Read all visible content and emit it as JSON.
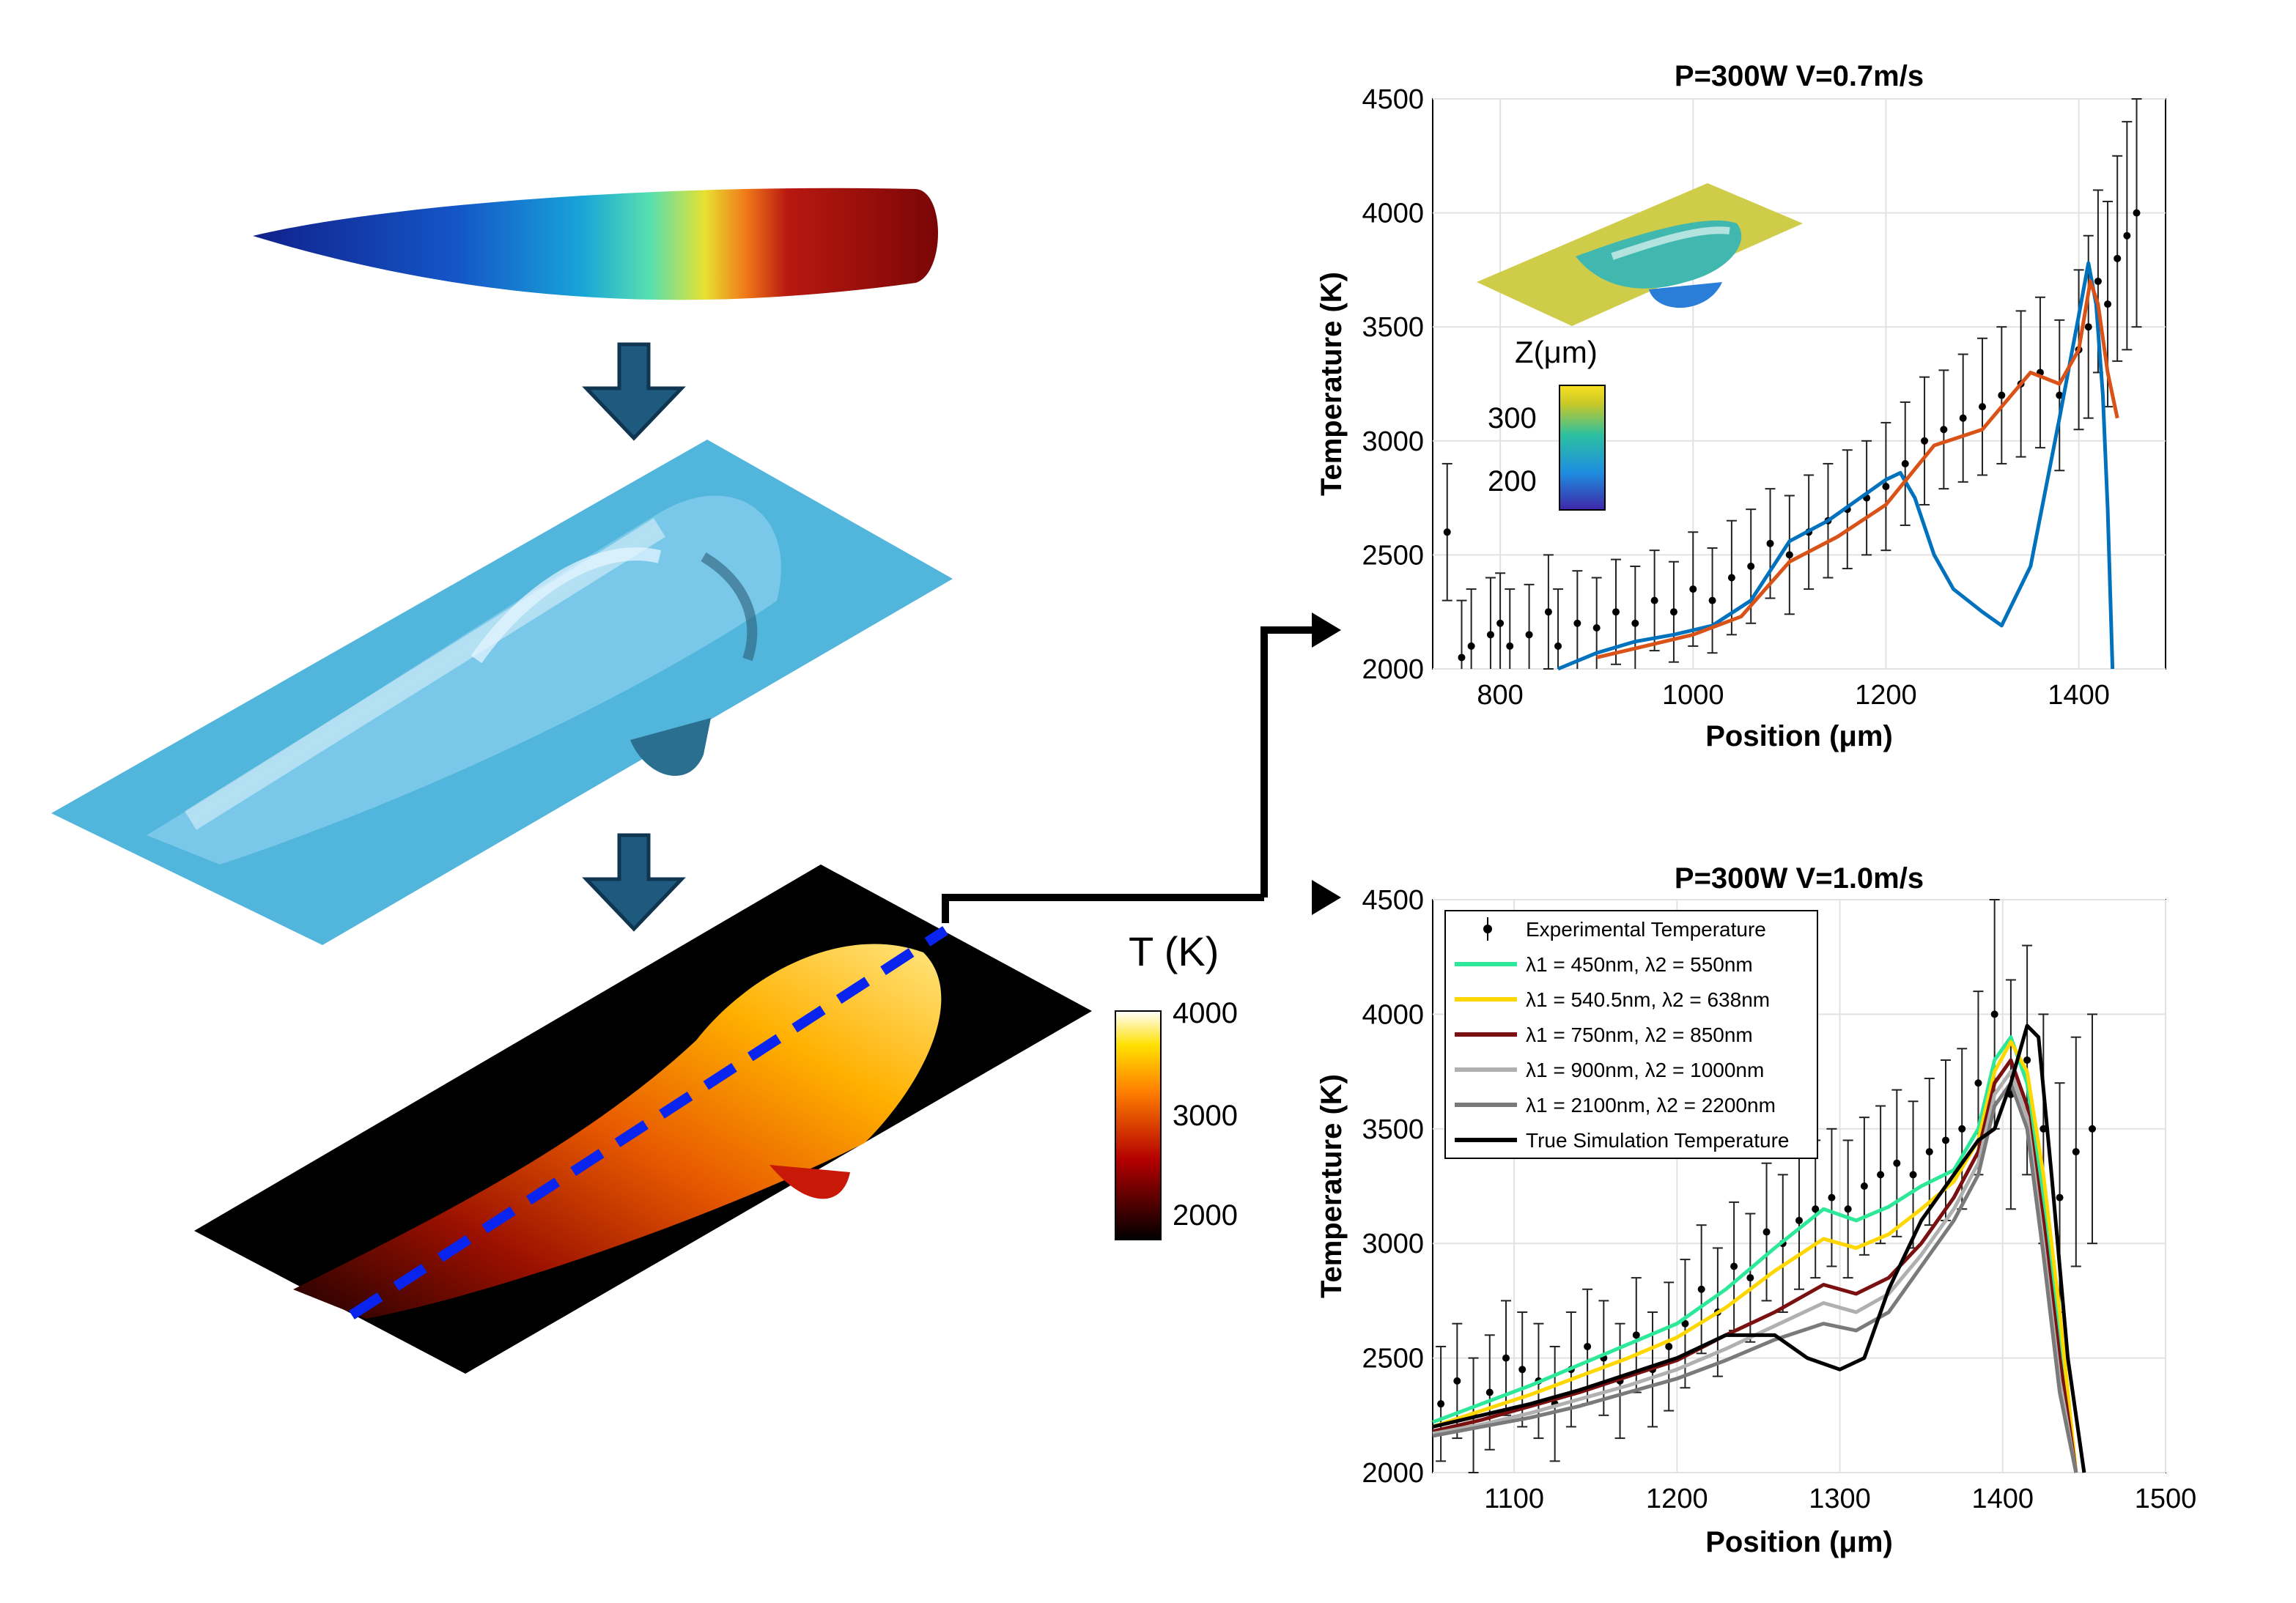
{
  "colorbar_T": {
    "title": "T (K)",
    "ticks": [
      "4000",
      "3000",
      "2000"
    ]
  },
  "inset": {
    "title": "Z(μm)",
    "ticks": [
      "300",
      "200"
    ]
  },
  "colors": {
    "arrow": "#1e5a7e",
    "blue_line": "#0a24f0",
    "orange_line": "#d95319",
    "blue_curve": "#0072bd",
    "teal_plane": "#52b6dc"
  },
  "icons": [
    "down-arrow-icon",
    "down-arrow-icon",
    "branch-arrow-icon"
  ],
  "chart_data": [
    {
      "type": "line",
      "title": "P=300W V=0.7m/s",
      "xlabel": "Position (μm)",
      "ylabel": "Temperature (K)",
      "xlim": [
        730,
        1490
      ],
      "ylim": [
        2000,
        4500
      ],
      "xticks": [
        800,
        1000,
        1200,
        1400
      ],
      "yticks": [
        2000,
        2500,
        3000,
        3500,
        4000,
        4500
      ],
      "grid": true,
      "series": [
        {
          "color": "#0072bd",
          "x": [
            860,
            900,
            940,
            980,
            1020,
            1060,
            1100,
            1140,
            1180,
            1200,
            1215,
            1230,
            1250,
            1270,
            1300,
            1320,
            1350,
            1380,
            1400,
            1410,
            1418,
            1425,
            1430,
            1435
          ],
          "y": [
            2000,
            2070,
            2120,
            2150,
            2190,
            2300,
            2560,
            2650,
            2770,
            2830,
            2860,
            2750,
            2500,
            2350,
            2250,
            2190,
            2450,
            3100,
            3550,
            3780,
            3600,
            3200,
            2700,
            2000
          ]
        },
        {
          "color": "#d95319",
          "x": [
            900,
            950,
            1000,
            1050,
            1100,
            1150,
            1200,
            1250,
            1300,
            1350,
            1380,
            1400,
            1412,
            1420,
            1430,
            1440
          ],
          "y": [
            2050,
            2100,
            2150,
            2230,
            2470,
            2580,
            2720,
            2980,
            3050,
            3300,
            3250,
            3400,
            3700,
            3600,
            3300,
            3100
          ]
        }
      ],
      "errorbar_series": {
        "name": "",
        "x": [
          745,
          760,
          770,
          790,
          800,
          810,
          830,
          850,
          860,
          880,
          900,
          920,
          940,
          960,
          980,
          1000,
          1020,
          1040,
          1060,
          1080,
          1100,
          1120,
          1140,
          1160,
          1180,
          1200,
          1220,
          1240,
          1260,
          1280,
          1300,
          1320,
          1340,
          1360,
          1380,
          1400,
          1410,
          1420,
          1430,
          1440,
          1450,
          1460
        ],
        "y": [
          2600,
          2050,
          2100,
          2150,
          2200,
          2100,
          2150,
          2250,
          2100,
          2200,
          2180,
          2250,
          2200,
          2300,
          2250,
          2350,
          2300,
          2400,
          2450,
          2550,
          2500,
          2600,
          2650,
          2700,
          2750,
          2800,
          2900,
          3000,
          3050,
          3100,
          3150,
          3200,
          3250,
          3300,
          3200,
          3400,
          3500,
          3700,
          3600,
          3800,
          3900,
          4000
        ],
        "err": [
          300,
          250,
          250,
          250,
          220,
          250,
          220,
          250,
          250,
          230,
          220,
          230,
          250,
          220,
          220,
          250,
          230,
          250,
          250,
          240,
          260,
          250,
          250,
          260,
          250,
          280,
          270,
          280,
          260,
          280,
          300,
          300,
          320,
          330,
          330,
          350,
          400,
          400,
          450,
          450,
          500,
          500
        ]
      }
    },
    {
      "type": "line",
      "title": "P=300W V=1.0m/s",
      "xlabel": "Position (μm)",
      "ylabel": "Temperature (K)",
      "xlim": [
        1050,
        1500
      ],
      "ylim": [
        2000,
        4500
      ],
      "xticks": [
        1100,
        1200,
        1300,
        1400,
        1500
      ],
      "yticks": [
        2000,
        2500,
        3000,
        3500,
        4000,
        4500
      ],
      "grid": true,
      "legend_position": "top-left",
      "legend": [
        "Experimental Temperature",
        "λ1 = 450nm,  λ2 = 550nm",
        "λ1 = 540.5nm,  λ2 = 638nm",
        "λ1 = 750nm,  λ2 = 850nm",
        "λ1 = 900nm,  λ2 = 1000nm",
        "λ1 = 2100nm,  λ2 = 2200nm",
        "True Simulation Temperature"
      ],
      "series": [
        {
          "name": "λ1 = 450nm,  λ2 = 550nm",
          "color": "#2ee89a",
          "x": [
            1050,
            1080,
            1110,
            1140,
            1170,
            1200,
            1230,
            1260,
            1290,
            1310,
            1330,
            1350,
            1370,
            1385,
            1395,
            1405,
            1415,
            1425,
            1435,
            1445
          ],
          "y": [
            2220,
            2300,
            2380,
            2470,
            2560,
            2650,
            2800,
            2980,
            3150,
            3100,
            3160,
            3250,
            3320,
            3500,
            3800,
            3900,
            3700,
            3200,
            2600,
            2000
          ]
        },
        {
          "name": "λ1 = 540.5nm,  λ2 = 638nm",
          "color": "#ffd700",
          "x": [
            1050,
            1080,
            1110,
            1140,
            1170,
            1200,
            1230,
            1260,
            1290,
            1310,
            1330,
            1350,
            1370,
            1385,
            1395,
            1405,
            1415,
            1425,
            1435,
            1445
          ],
          "y": [
            2200,
            2270,
            2340,
            2420,
            2500,
            2590,
            2720,
            2880,
            3020,
            2980,
            3040,
            3150,
            3270,
            3450,
            3750,
            3880,
            3750,
            3300,
            2700,
            2000
          ]
        },
        {
          "name": "λ1 = 750nm,  λ2 = 850nm",
          "color": "#7b1010",
          "x": [
            1050,
            1080,
            1110,
            1140,
            1170,
            1200,
            1230,
            1260,
            1290,
            1310,
            1330,
            1350,
            1370,
            1385,
            1395,
            1405,
            1415,
            1425,
            1435,
            1445
          ],
          "y": [
            2180,
            2230,
            2290,
            2350,
            2420,
            2490,
            2600,
            2700,
            2820,
            2780,
            2850,
            3000,
            3200,
            3400,
            3700,
            3800,
            3600,
            3100,
            2500,
            2000
          ]
        },
        {
          "name": "λ1 = 900nm,  λ2 = 1000nm",
          "color": "#b0b0b0",
          "x": [
            1050,
            1080,
            1110,
            1140,
            1170,
            1200,
            1230,
            1260,
            1290,
            1310,
            1330,
            1350,
            1370,
            1385,
            1395,
            1405,
            1415,
            1425,
            1435,
            1445
          ],
          "y": [
            2170,
            2210,
            2260,
            2320,
            2380,
            2450,
            2540,
            2640,
            2740,
            2700,
            2780,
            2950,
            3150,
            3350,
            3650,
            3750,
            3550,
            3000,
            2400,
            2000
          ]
        },
        {
          "name": "λ1 = 2100nm,  λ2 = 2200nm",
          "color": "#7a7a7a",
          "x": [
            1050,
            1080,
            1110,
            1140,
            1170,
            1200,
            1230,
            1260,
            1290,
            1310,
            1330,
            1350,
            1370,
            1385,
            1395,
            1405,
            1415,
            1425,
            1435,
            1445
          ],
          "y": [
            2160,
            2200,
            2240,
            2290,
            2350,
            2410,
            2490,
            2580,
            2650,
            2620,
            2700,
            2900,
            3100,
            3300,
            3600,
            3700,
            3500,
            2950,
            2350,
            2000
          ]
        },
        {
          "name": "True Simulation Temperature",
          "color": "#000000",
          "x": [
            1050,
            1080,
            1110,
            1140,
            1170,
            1200,
            1230,
            1260,
            1280,
            1300,
            1315,
            1330,
            1350,
            1370,
            1385,
            1395,
            1405,
            1415,
            1422,
            1430,
            1440,
            1450
          ],
          "y": [
            2200,
            2250,
            2300,
            2360,
            2430,
            2500,
            2600,
            2600,
            2500,
            2450,
            2500,
            2800,
            3100,
            3300,
            3450,
            3500,
            3700,
            3950,
            3900,
            3300,
            2500,
            2000
          ]
        }
      ],
      "errorbar_series": {
        "name": "Experimental Temperature",
        "x": [
          1055,
          1065,
          1075,
          1085,
          1095,
          1105,
          1115,
          1125,
          1135,
          1145,
          1155,
          1165,
          1175,
          1185,
          1195,
          1205,
          1215,
          1225,
          1235,
          1245,
          1255,
          1265,
          1275,
          1285,
          1295,
          1305,
          1315,
          1325,
          1335,
          1345,
          1355,
          1365,
          1375,
          1385,
          1395,
          1405,
          1415,
          1425,
          1435,
          1445,
          1455
        ],
        "y": [
          2300,
          2400,
          2250,
          2350,
          2500,
          2450,
          2400,
          2300,
          2450,
          2550,
          2500,
          2400,
          2600,
          2450,
          2550,
          2650,
          2800,
          2700,
          2900,
          2850,
          3050,
          3000,
          3100,
          3150,
          3200,
          3150,
          3250,
          3300,
          3350,
          3300,
          3400,
          3450,
          3500,
          3700,
          4000,
          3650,
          3800,
          3500,
          3200,
          3400,
          3500
        ],
        "err": [
          250,
          250,
          250,
          250,
          250,
          250,
          250,
          250,
          250,
          250,
          250,
          250,
          250,
          250,
          280,
          280,
          280,
          280,
          280,
          280,
          300,
          300,
          300,
          300,
          300,
          300,
          300,
          300,
          320,
          320,
          320,
          350,
          350,
          400,
          500,
          500,
          500,
          500,
          500,
          500,
          500
        ]
      }
    }
  ]
}
